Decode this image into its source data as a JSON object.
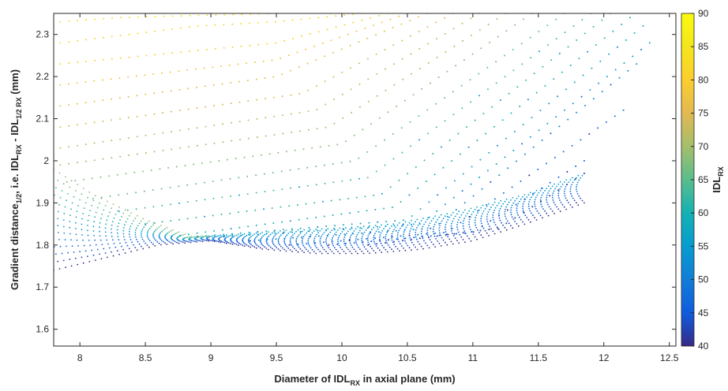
{
  "chart_data": {
    "type": "scatter",
    "title": "",
    "xlabel": {
      "main": "Diameter of IDL",
      "sub": "RX",
      "rest": " in axial plane (mm)"
    },
    "ylabel": {
      "p1": "Gradient distance",
      "p1_sub": "1/2",
      "p2": ",  i.e. IDL",
      "p2_sub": "RX",
      "p3": " - IDL",
      "p3_sub": "1/2 RX",
      "p4": "  (mm)"
    },
    "xlim": [
      7.8,
      12.55
    ],
    "ylim": [
      1.56,
      2.35
    ],
    "xticks": [
      8,
      8.5,
      9,
      9.5,
      10,
      10.5,
      11,
      11.5,
      12,
      12.5
    ],
    "yticks": [
      1.6,
      1.7,
      1.8,
      1.9,
      2.0,
      2.1,
      2.2,
      2.3
    ],
    "colorbar": {
      "label_main": "IDL",
      "label_sub": "RX",
      "range": [
        40,
        90
      ],
      "ticks": [
        40,
        45,
        50,
        55,
        60,
        65,
        70,
        75,
        80,
        85,
        90
      ],
      "colormap": "parula"
    },
    "series": [
      {
        "idl": 84,
        "x": [
          7.85,
          8.3,
          8.9,
          9.5
        ],
        "y": [
          2.33,
          2.34,
          2.345,
          2.35
        ]
      },
      {
        "idl": 82,
        "x": [
          7.85,
          8.9,
          9.5,
          10.15
        ],
        "y": [
          2.28,
          2.32,
          2.33,
          2.35
        ]
      },
      {
        "idl": 80,
        "x": [
          7.85,
          9.5,
          10.35
        ],
        "y": [
          2.23,
          2.28,
          2.35
        ]
      },
      {
        "idl": 78,
        "x": [
          7.85,
          9.5,
          10.5
        ],
        "y": [
          2.18,
          2.24,
          2.35
        ]
      },
      {
        "idl": 76,
        "x": [
          7.85,
          9.5,
          10.65
        ],
        "y": [
          2.13,
          2.2,
          2.35
        ]
      },
      {
        "idl": 74,
        "x": [
          7.85,
          9.7,
          10.85
        ],
        "y": [
          2.08,
          2.16,
          2.35
        ]
      },
      {
        "idl": 72,
        "x": [
          7.85,
          9.8,
          11.05
        ],
        "y": [
          2.03,
          2.12,
          2.35
        ]
      },
      {
        "idl": 70,
        "x": [
          7.85,
          9.9,
          11.25
        ],
        "y": [
          1.99,
          2.08,
          2.35
        ]
      },
      {
        "idl": 68,
        "x": [
          7.9,
          10.0,
          11.45
        ],
        "y": [
          1.95,
          2.04,
          2.35
        ]
      },
      {
        "idl": 66,
        "x": [
          8.1,
          10.1,
          11.7
        ],
        "y": [
          1.91,
          2.0,
          2.35
        ]
      },
      {
        "idl": 64,
        "x": [
          8.3,
          10.2,
          11.9
        ],
        "y": [
          1.88,
          1.96,
          2.35
        ]
      },
      {
        "idl": 62,
        "x": [
          8.5,
          10.3,
          12.05
        ],
        "y": [
          1.85,
          1.92,
          2.35
        ]
      },
      {
        "idl": 60,
        "x": [
          8.7,
          10.4,
          12.2
        ],
        "y": [
          1.82,
          1.89,
          2.34
        ]
      },
      {
        "idl": 58,
        "x": [
          8.9,
          10.5,
          12.3
        ],
        "y": [
          1.82,
          1.86,
          2.32
        ]
      },
      {
        "idl": 55,
        "x": [
          9.1,
          10.6,
          12.35
        ],
        "y": [
          1.82,
          1.85,
          2.28
        ]
      },
      {
        "idl": 52,
        "x": [
          9.3,
          10.7,
          12.25
        ],
        "y": [
          1.81,
          1.84,
          2.23
        ]
      },
      {
        "idl": 48,
        "x": [
          9.6,
          10.8,
          12.15
        ],
        "y": [
          1.8,
          1.83,
          2.12
        ]
      },
      {
        "idl": 45,
        "x": [
          9.9,
          11.0,
          11.85
        ],
        "y": [
          1.8,
          1.83,
          2.0
        ]
      },
      {
        "idl": 42,
        "x": [
          10.2,
          11.2,
          11.85
        ],
        "y": [
          1.8,
          1.84,
          1.97
        ]
      }
    ],
    "dense_band": {
      "idl_range": [
        40,
        70
      ],
      "upper": {
        "x": [
          7.8,
          8.1,
          8.5,
          8.85,
          9.2,
          9.6,
          10.0,
          10.4,
          10.9,
          11.4,
          11.85
        ],
        "y": [
          1.98,
          1.92,
          1.86,
          1.82,
          1.825,
          1.835,
          1.84,
          1.85,
          1.88,
          1.92,
          1.97
        ]
      },
      "lower": {
        "x": [
          7.8,
          8.2,
          8.6,
          9.0,
          9.4,
          9.8,
          10.2,
          10.6,
          11.0,
          11.4,
          11.85
        ],
        "y": [
          1.74,
          1.77,
          1.8,
          1.81,
          1.79,
          1.78,
          1.78,
          1.79,
          1.81,
          1.85,
          1.9
        ]
      }
    }
  }
}
